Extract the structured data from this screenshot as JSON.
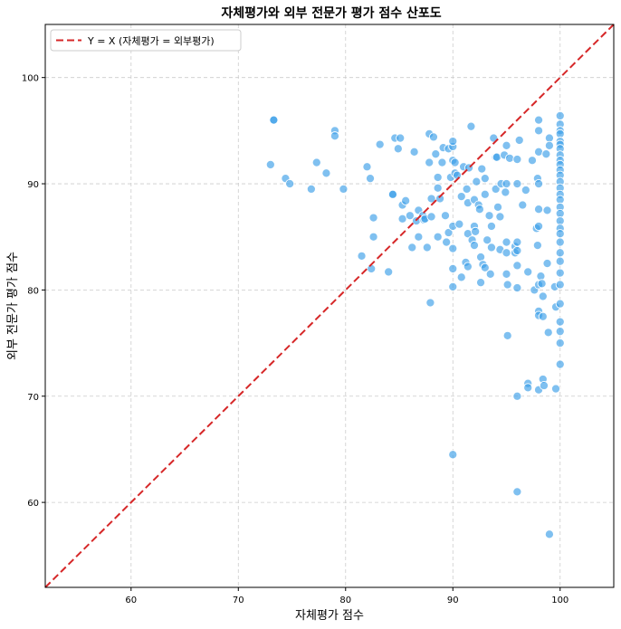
{
  "chart_data": {
    "type": "scatter",
    "title": "자체평가와 외부 전문가 평가 점수 산포도",
    "xlabel": "자체평가 점수",
    "ylabel": "외부 전문가 평가 점수",
    "xlim": [
      52,
      105
    ],
    "ylim": [
      52,
      105
    ],
    "xticks": [
      "60",
      "70",
      "80",
      "90",
      "100"
    ],
    "yticks": [
      "60",
      "70",
      "80",
      "90",
      "100"
    ],
    "grid": true,
    "legend_position": "top-left",
    "reference_line": {
      "label": "Y = X (자체평가 = 외부평가)",
      "color": "#d62728",
      "style": "dashed"
    },
    "point_color": "#3b9ee8",
    "points": [
      [
        73.3,
        96.0
      ],
      [
        73.3,
        96.0
      ],
      [
        73.0,
        91.8
      ],
      [
        74.4,
        90.5
      ],
      [
        74.8,
        90.0
      ],
      [
        76.8,
        89.5
      ],
      [
        77.3,
        92.0
      ],
      [
        78.2,
        91.0
      ],
      [
        79.0,
        95.0
      ],
      [
        79.0,
        94.5
      ],
      [
        79.8,
        89.5
      ],
      [
        81.5,
        83.2
      ],
      [
        82.0,
        91.6
      ],
      [
        82.3,
        90.5
      ],
      [
        82.4,
        82.0
      ],
      [
        82.6,
        86.8
      ],
      [
        82.6,
        85.0
      ],
      [
        83.2,
        93.7
      ],
      [
        84.0,
        81.7
      ],
      [
        84.4,
        89.0
      ],
      [
        84.4,
        89.0
      ],
      [
        84.6,
        94.3
      ],
      [
        84.9,
        93.3
      ],
      [
        85.1,
        94.3
      ],
      [
        85.3,
        86.7
      ],
      [
        85.3,
        88.0
      ],
      [
        85.6,
        88.4
      ],
      [
        86.0,
        87.0
      ],
      [
        86.2,
        84.0
      ],
      [
        86.4,
        93.0
      ],
      [
        86.6,
        86.5
      ],
      [
        86.8,
        85.0
      ],
      [
        86.8,
        87.5
      ],
      [
        87.2,
        87.0
      ],
      [
        87.3,
        86.6
      ],
      [
        87.4,
        86.7
      ],
      [
        87.6,
        84.0
      ],
      [
        87.8,
        94.7
      ],
      [
        87.8,
        92.0
      ],
      [
        87.9,
        78.8
      ],
      [
        88.0,
        88.6
      ],
      [
        88.0,
        86.9
      ],
      [
        88.2,
        94.4
      ],
      [
        88.4,
        92.8
      ],
      [
        88.6,
        90.6
      ],
      [
        88.6,
        89.6
      ],
      [
        88.6,
        85.0
      ],
      [
        88.8,
        88.6
      ],
      [
        89.0,
        92.0
      ],
      [
        89.1,
        93.4
      ],
      [
        89.3,
        87.0
      ],
      [
        89.4,
        84.5
      ],
      [
        89.6,
        93.3
      ],
      [
        89.6,
        85.4
      ],
      [
        89.8,
        90.6
      ],
      [
        90.0,
        93.5
      ],
      [
        90.0,
        94.0
      ],
      [
        90.0,
        92.2
      ],
      [
        90.0,
        86.0
      ],
      [
        90.0,
        83.9
      ],
      [
        90.0,
        82.0
      ],
      [
        90.0,
        80.3
      ],
      [
        90.0,
        64.5
      ],
      [
        90.2,
        91.0
      ],
      [
        90.2,
        92.0
      ],
      [
        90.4,
        90.8
      ],
      [
        90.6,
        86.2
      ],
      [
        90.8,
        88.8
      ],
      [
        90.8,
        81.2
      ],
      [
        91.0,
        91.6
      ],
      [
        91.2,
        82.6
      ],
      [
        91.3,
        89.5
      ],
      [
        91.4,
        88.2
      ],
      [
        91.4,
        82.2
      ],
      [
        91.4,
        85.3
      ],
      [
        91.5,
        91.5
      ],
      [
        91.7,
        95.4
      ],
      [
        91.8,
        84.7
      ],
      [
        92.0,
        88.5
      ],
      [
        92.0,
        86.0
      ],
      [
        92.0,
        84.2
      ],
      [
        92.1,
        85.5
      ],
      [
        92.2,
        90.2
      ],
      [
        92.4,
        88.0
      ],
      [
        92.5,
        87.6
      ],
      [
        92.6,
        83.1
      ],
      [
        92.6,
        80.7
      ],
      [
        92.7,
        91.4
      ],
      [
        92.8,
        82.4
      ],
      [
        93.0,
        90.5
      ],
      [
        93.0,
        89.0
      ],
      [
        93.0,
        82.1
      ],
      [
        93.2,
        84.7
      ],
      [
        93.4,
        87.0
      ],
      [
        93.5,
        81.5
      ],
      [
        93.6,
        86.0
      ],
      [
        93.6,
        84.0
      ],
      [
        93.8,
        94.3
      ],
      [
        94.0,
        92.5
      ],
      [
        94.0,
        89.5
      ],
      [
        94.1,
        92.5
      ],
      [
        94.2,
        87.8
      ],
      [
        94.4,
        83.8
      ],
      [
        94.4,
        86.9
      ],
      [
        94.5,
        90.0
      ],
      [
        94.8,
        92.7
      ],
      [
        94.9,
        89.2
      ],
      [
        95.0,
        93.6
      ],
      [
        95.0,
        90.0
      ],
      [
        95.0,
        84.5
      ],
      [
        95.0,
        83.5
      ],
      [
        95.0,
        81.5
      ],
      [
        95.1,
        80.5
      ],
      [
        95.1,
        75.7
      ],
      [
        95.3,
        92.4
      ],
      [
        95.8,
        84.1
      ],
      [
        95.8,
        83.5
      ],
      [
        96.0,
        92.3
      ],
      [
        96.0,
        90.0
      ],
      [
        96.0,
        84.5
      ],
      [
        96.0,
        83.7
      ],
      [
        96.0,
        82.3
      ],
      [
        96.0,
        80.2
      ],
      [
        96.0,
        70.0
      ],
      [
        96.0,
        61.0
      ],
      [
        96.2,
        94.1
      ],
      [
        96.5,
        88.0
      ],
      [
        96.8,
        89.4
      ],
      [
        97.0,
        81.7
      ],
      [
        97.0,
        71.2
      ],
      [
        97.0,
        70.8
      ],
      [
        97.4,
        92.2
      ],
      [
        97.6,
        80.0
      ],
      [
        97.8,
        85.8
      ],
      [
        97.9,
        84.2
      ],
      [
        97.9,
        90.5
      ],
      [
        98.0,
        96.0
      ],
      [
        98.0,
        95.0
      ],
      [
        98.0,
        93.0
      ],
      [
        98.0,
        90.0
      ],
      [
        98.0,
        87.6
      ],
      [
        98.0,
        86.0
      ],
      [
        98.0,
        80.5
      ],
      [
        98.0,
        78.0
      ],
      [
        98.0,
        77.6
      ],
      [
        98.0,
        70.6
      ],
      [
        98.2,
        81.3
      ],
      [
        98.3,
        80.6
      ],
      [
        98.4,
        79.4
      ],
      [
        98.4,
        77.5
      ],
      [
        98.4,
        71.6
      ],
      [
        98.5,
        71.0
      ],
      [
        98.7,
        92.8
      ],
      [
        98.8,
        87.5
      ],
      [
        98.8,
        82.5
      ],
      [
        98.9,
        76.0
      ],
      [
        99.0,
        94.3
      ],
      [
        99.0,
        93.6
      ],
      [
        99.0,
        57.0
      ],
      [
        99.5,
        80.3
      ],
      [
        99.6,
        78.4
      ],
      [
        99.6,
        70.7
      ],
      [
        100.0,
        96.4
      ],
      [
        100.0,
        95.6
      ],
      [
        100.0,
        95.0
      ],
      [
        100.0,
        94.7
      ],
      [
        100.0,
        94.0
      ],
      [
        100.0,
        93.7
      ],
      [
        100.0,
        93.3
      ],
      [
        100.0,
        92.7
      ],
      [
        100.0,
        92.2
      ],
      [
        100.0,
        91.8
      ],
      [
        100.0,
        91.3
      ],
      [
        100.0,
        90.8
      ],
      [
        100.0,
        90.2
      ],
      [
        100.0,
        89.6
      ],
      [
        100.0,
        89.0
      ],
      [
        100.0,
        88.5
      ],
      [
        100.0,
        87.8
      ],
      [
        100.0,
        87.2
      ],
      [
        100.0,
        86.5
      ],
      [
        100.0,
        85.8
      ],
      [
        100.0,
        85.3
      ],
      [
        100.0,
        84.5
      ],
      [
        100.0,
        83.5
      ],
      [
        100.0,
        82.7
      ],
      [
        100.0,
        81.6
      ],
      [
        100.0,
        80.5
      ],
      [
        100.0,
        78.7
      ],
      [
        100.0,
        77.0
      ],
      [
        100.0,
        76.1
      ],
      [
        100.0,
        75.0
      ],
      [
        100.0,
        73.0
      ]
    ]
  }
}
